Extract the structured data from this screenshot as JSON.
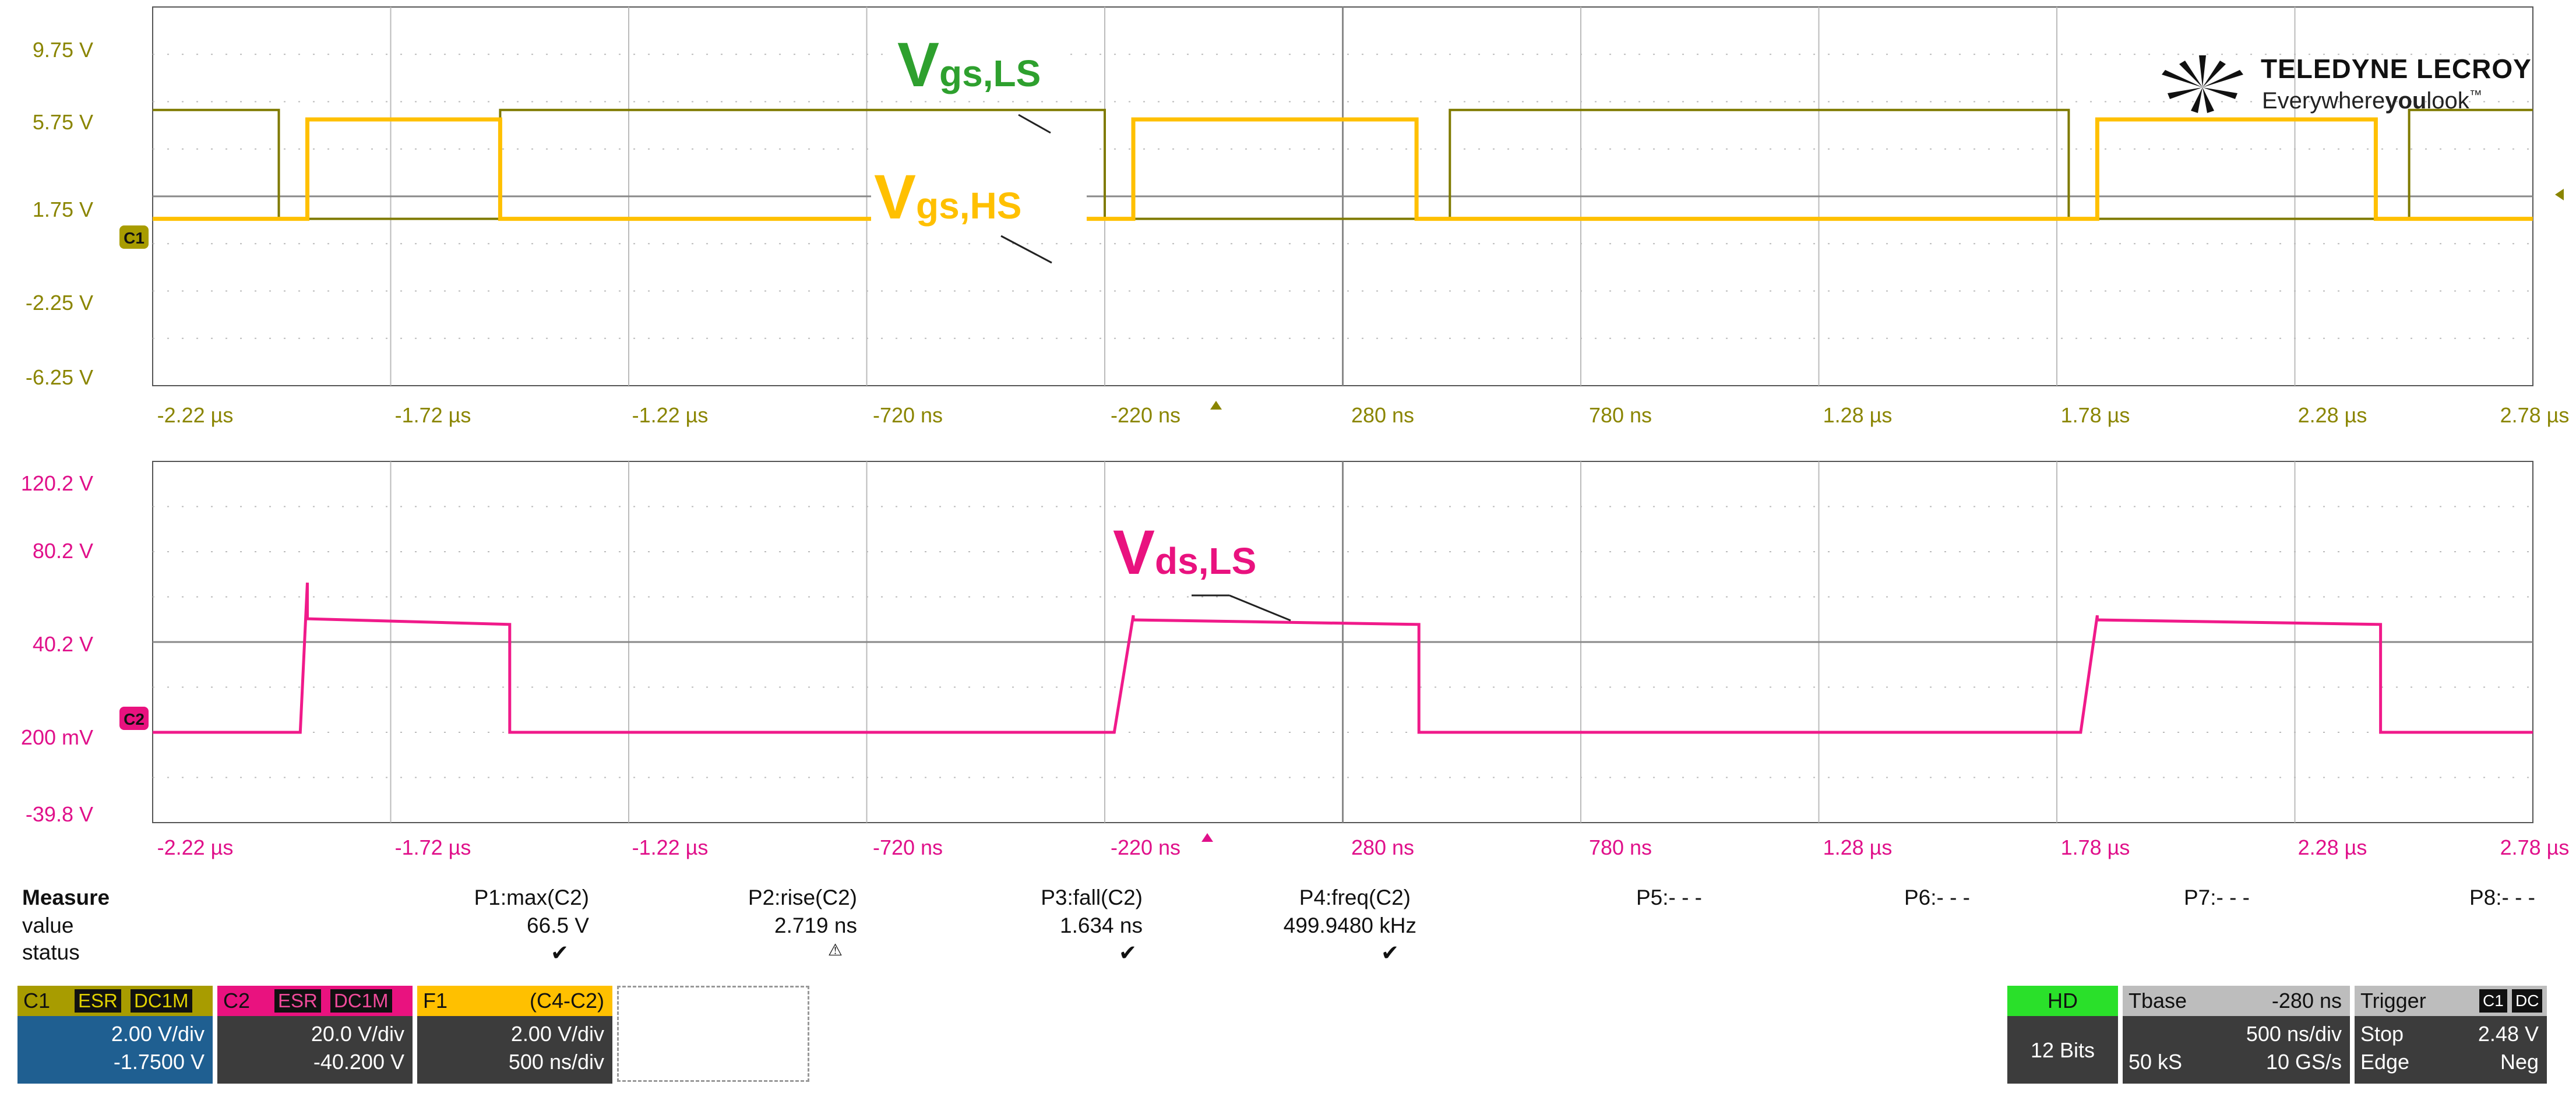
{
  "colors": {
    "c1": "#7f7a00",
    "c2": "#f01a8a",
    "f1": "#ffc000",
    "grid": "#9a9a9a",
    "panel_dark": "#3c3c3c",
    "panel_blue": "#1f5f91",
    "hd_green": "#2ae02a",
    "ch1_label": "#a89c00",
    "ch2_label": "#e9127f"
  },
  "logo": {
    "brand": "TELEDYNE LECROY",
    "tagline_a": "Everywhere",
    "tagline_b": "you",
    "tagline_c": "look",
    "tm": "™"
  },
  "top_panel": {
    "y_ticks": [
      "9.75 V",
      "5.75 V",
      "1.75 V",
      "-2.25 V",
      "-6.25 V"
    ],
    "x_ticks": [
      "-2.22 µs",
      "-1.72 µs",
      "-1.22 µs",
      "-720 ns",
      "-220 ns",
      "280 ns",
      "780 ns",
      "1.28 µs",
      "1.78 µs",
      "2.28 µs",
      "2.78 µs"
    ],
    "channel_marker": "C1",
    "label_ls_main": "V",
    "label_ls_sub": "gs,LS",
    "label_hs_main": "V",
    "label_hs_sub": "gs,HS"
  },
  "bottom_panel": {
    "y_ticks": [
      "120.2 V",
      "80.2 V",
      "40.2 V",
      "200 mV",
      "-39.8 V"
    ],
    "x_ticks": [
      "-2.22 µs",
      "-1.72 µs",
      "-1.22 µs",
      "-720 ns",
      "-220 ns",
      "280 ns",
      "780 ns",
      "1.28 µs",
      "1.78 µs",
      "2.28 µs",
      "2.78 µs"
    ],
    "channel_marker": "C2",
    "label_main": "V",
    "label_sub": "ds,LS"
  },
  "chart_data": [
    {
      "type": "line",
      "panel": "top",
      "x_unit": "µs",
      "xlim": [
        -2.22,
        2.78
      ],
      "ylim": [
        -6.25,
        9.75
      ],
      "y_unit": "V",
      "grid": true,
      "series": [
        {
          "name": "Vgs,LS",
          "x": [
            -2.22,
            -1.955,
            -1.955,
            -1.49,
            -1.49,
            -0.22,
            -0.22,
            0.505,
            0.505,
            1.805,
            1.805,
            2.52,
            2.52,
            2.78
          ],
          "y": [
            5.4,
            5.4,
            0.8,
            0.8,
            5.4,
            5.4,
            0.8,
            0.8,
            5.4,
            5.4,
            0.8,
            0.8,
            5.4,
            5.4
          ]
        },
        {
          "name": "Vgs,HS",
          "x": [
            -2.22,
            -1.895,
            -1.895,
            -1.49,
            -1.49,
            -0.16,
            -0.16,
            0.435,
            0.435,
            1.865,
            1.865,
            2.45,
            2.45,
            2.78
          ],
          "y": [
            0.8,
            0.8,
            5.0,
            5.0,
            0.8,
            0.8,
            5.0,
            5.0,
            0.8,
            0.8,
            5.0,
            5.0,
            0.8,
            0.8
          ]
        }
      ]
    },
    {
      "type": "line",
      "panel": "bottom",
      "x_unit": "µs",
      "xlim": [
        -2.22,
        2.78
      ],
      "ylim": [
        -39.8,
        120.2
      ],
      "y_unit": "V",
      "grid": true,
      "series": [
        {
          "name": "Vds,LS",
          "x": [
            -2.22,
            -1.91,
            -1.91,
            -1.895,
            -1.895,
            -1.47,
            -1.47,
            -0.2,
            -0.2,
            -0.16,
            -0.16,
            0.44,
            0.44,
            1.83,
            1.83,
            1.865,
            1.865,
            2.46,
            2.46,
            2.78
          ],
          "y": [
            0.2,
            0.2,
            0.2,
            66.5,
            50.5,
            48.0,
            0.2,
            0.2,
            0.2,
            52.0,
            50.0,
            48.0,
            0.2,
            0.2,
            0.2,
            52.0,
            50.0,
            48.0,
            0.2,
            0.2
          ]
        }
      ]
    }
  ],
  "measure": {
    "title": "Measure",
    "row_value": "value",
    "row_status": "status",
    "params": [
      {
        "label": "P1:max(C2)",
        "value": "66.5 V",
        "status": "✔"
      },
      {
        "label": "P2:rise(C2)",
        "value": "2.719 ns",
        "status": "⚠"
      },
      {
        "label": "P3:fall(C2)",
        "value": "1.634 ns",
        "status": "✔"
      },
      {
        "label": "P4:freq(C2)",
        "value": "499.9480 kHz",
        "status": "✔"
      },
      {
        "label": "P5:- - -",
        "value": "",
        "status": ""
      },
      {
        "label": "P6:- - -",
        "value": "",
        "status": ""
      },
      {
        "label": "P7:- - -",
        "value": "",
        "status": ""
      },
      {
        "label": "P8:- - -",
        "value": "",
        "status": ""
      }
    ]
  },
  "channels": {
    "c1": {
      "name": "C1",
      "tag1": "ESR",
      "tag2": "DC1M",
      "scale": "2.00 V/div",
      "offset": "-1.7500 V"
    },
    "c2": {
      "name": "C2",
      "tag1": "ESR",
      "tag2": "DC1M",
      "scale": "20.0 V/div",
      "offset": "-40.200 V"
    },
    "f1": {
      "name": "F1",
      "formula": "(C4-C2)",
      "scale": "2.00 V/div",
      "time": "500 ns/div"
    }
  },
  "hd": {
    "label": "HD",
    "bits": "12 Bits"
  },
  "tbase": {
    "label": "Tbase",
    "delay": "-280 ns",
    "scale": "500 ns/div",
    "samples": "50 kS",
    "rate": "10 GS/s"
  },
  "trigger": {
    "label": "Trigger",
    "ch": "C1",
    "coupling": "DC",
    "mode": "Stop",
    "level": "2.48 V",
    "type": "Edge",
    "slope": "Neg"
  }
}
